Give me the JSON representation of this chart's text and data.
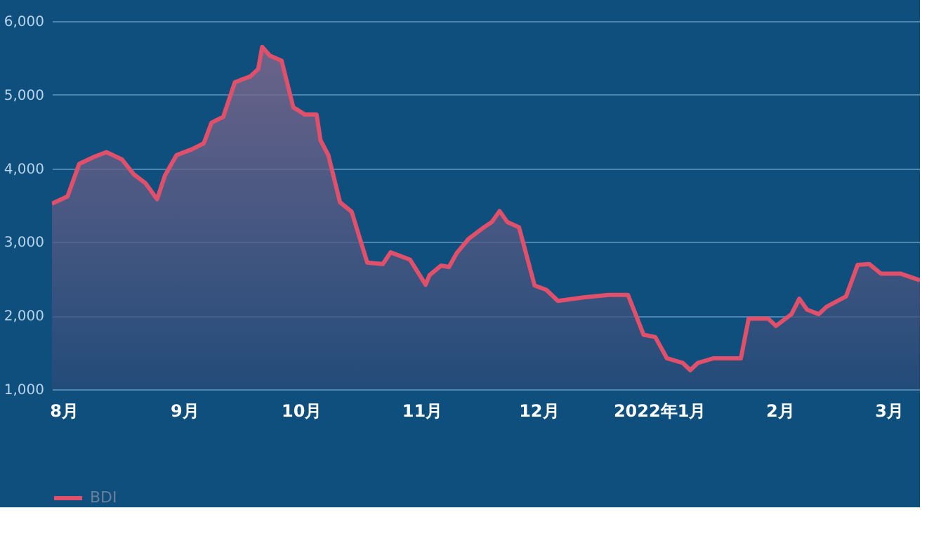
{
  "chart_data": {
    "type": "area",
    "legend": "bottom",
    "grid": "y",
    "xlim": [
      "2021-07-29",
      "2022-03-09"
    ],
    "xticks": [
      {
        "value": "2021-08-01",
        "label": "8月"
      },
      {
        "value": "2021-09-01",
        "label": "9月"
      },
      {
        "value": "2021-10-01",
        "label": "10月"
      },
      {
        "value": "2021-11-01",
        "label": "11月"
      },
      {
        "value": "2021-12-01",
        "label": "12月"
      },
      {
        "value": "2022-01-01",
        "label": "2022年1月"
      },
      {
        "value": "2022-02-01",
        "label": "2月"
      },
      {
        "value": "2022-03-01",
        "label": "3月"
      }
    ],
    "ylim": [
      1000,
      6000
    ],
    "yticks": [
      {
        "value": 1000,
        "label": "1,000"
      },
      {
        "value": 2000,
        "label": "2,000"
      },
      {
        "value": 3000,
        "label": "3,000"
      },
      {
        "value": 4000,
        "label": "4,000"
      },
      {
        "value": 5000,
        "label": "5,000"
      },
      {
        "value": 6000,
        "label": "6,000"
      }
    ],
    "x": [
      "2021-07-29",
      "2021-08-02",
      "2021-08-05",
      "2021-08-09",
      "2021-08-12",
      "2021-08-16",
      "2021-08-19",
      "2021-08-22",
      "2021-08-25",
      "2021-08-27",
      "2021-08-30",
      "2021-09-03",
      "2021-09-06",
      "2021-09-08",
      "2021-09-11",
      "2021-09-14",
      "2021-09-18",
      "2021-09-20",
      "2021-09-21",
      "2021-09-23",
      "2021-09-26",
      "2021-09-29",
      "2021-10-02",
      "2021-10-05",
      "2021-10-06",
      "2021-10-08",
      "2021-10-11",
      "2021-10-14",
      "2021-10-18",
      "2021-10-22",
      "2021-10-24",
      "2021-10-29",
      "2021-11-02",
      "2021-11-03",
      "2021-11-06",
      "2021-11-08",
      "2021-11-10",
      "2021-11-13",
      "2021-11-17",
      "2021-11-19",
      "2021-11-21",
      "2021-11-23",
      "2021-11-26",
      "2021-11-30",
      "2021-12-03",
      "2021-12-06",
      "2021-12-13",
      "2021-12-19",
      "2021-12-24",
      "2021-12-28",
      "2021-12-31",
      "2022-01-03",
      "2022-01-07",
      "2022-01-09",
      "2022-01-11",
      "2022-01-15",
      "2022-01-22",
      "2022-01-24",
      "2022-01-29",
      "2022-01-31",
      "2022-02-04",
      "2022-02-06",
      "2022-02-08",
      "2022-02-11",
      "2022-02-13",
      "2022-02-18",
      "2022-02-21",
      "2022-02-24",
      "2022-02-27",
      "2022-03-04",
      "2022-03-09"
    ],
    "series": [
      {
        "name": "BDI",
        "color": "#e0506a",
        "values": [
          3520,
          3620,
          4060,
          4160,
          4220,
          4120,
          3920,
          3800,
          3580,
          3900,
          4180,
          4260,
          4340,
          4620,
          4700,
          5170,
          5250,
          5350,
          5650,
          5530,
          5460,
          4830,
          4730,
          4730,
          4380,
          4180,
          3540,
          3410,
          2720,
          2700,
          2860,
          2760,
          2420,
          2550,
          2680,
          2660,
          2850,
          3040,
          3200,
          3270,
          3420,
          3270,
          3200,
          2410,
          2350,
          2200,
          2250,
          2280,
          2280,
          1740,
          1710,
          1420,
          1360,
          1260,
          1360,
          1420,
          1420,
          1960,
          1960,
          1860,
          2020,
          2230,
          2080,
          2020,
          2120,
          2260,
          2690,
          2700,
          2570,
          2570,
          2480
        ]
      }
    ]
  }
}
